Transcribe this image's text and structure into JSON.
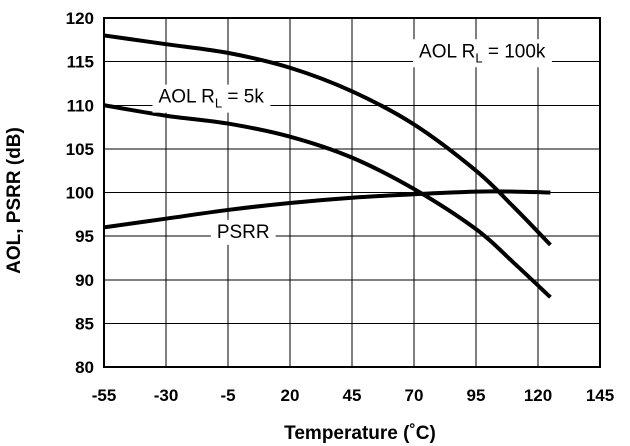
{
  "chart_data": {
    "type": "line",
    "title": "",
    "xlabel": "Temperature (˚C)",
    "ylabel": "AOL, PSRR (dB)",
    "xlim": [
      -55,
      145
    ],
    "ylim": [
      80,
      120
    ],
    "xticks": [
      -55,
      -30,
      -5,
      20,
      45,
      70,
      95,
      120,
      145
    ],
    "yticks": [
      80,
      85,
      90,
      95,
      100,
      105,
      110,
      115,
      120
    ],
    "grid": true,
    "series": [
      {
        "name": "AOL RL = 100k",
        "x": [
          -55,
          -30,
          -5,
          20,
          45,
          70,
          95,
          110,
          125
        ],
        "y": [
          118,
          117,
          116,
          114.3,
          111.6,
          107.8,
          102.5,
          98.4,
          94
        ]
      },
      {
        "name": "AOL RL = 5k",
        "x": [
          -55,
          -30,
          -5,
          20,
          45,
          70,
          95,
          110,
          125
        ],
        "y": [
          110,
          108.8,
          107.9,
          106.4,
          104,
          100.4,
          95.8,
          92,
          88
        ]
      },
      {
        "name": "PSRR",
        "x": [
          -55,
          -30,
          -5,
          20,
          45,
          70,
          95,
          110,
          125
        ],
        "y": [
          96,
          97,
          98,
          98.8,
          99.4,
          99.8,
          100.1,
          100.1,
          100
        ]
      }
    ],
    "annotations": [
      {
        "series": 0,
        "text": "AOL R",
        "sub": "L",
        "suffix": " = 100k",
        "x": 123,
        "y": 115.5,
        "anchor": "end"
      },
      {
        "series": 1,
        "text": "AOL R",
        "sub": "L",
        "suffix": " = 5k",
        "x": -33,
        "y": 110.3,
        "anchor": "start"
      },
      {
        "series": 2,
        "text": "PSRR",
        "x": -9.5,
        "y": 94.8,
        "anchor": "start"
      }
    ]
  }
}
